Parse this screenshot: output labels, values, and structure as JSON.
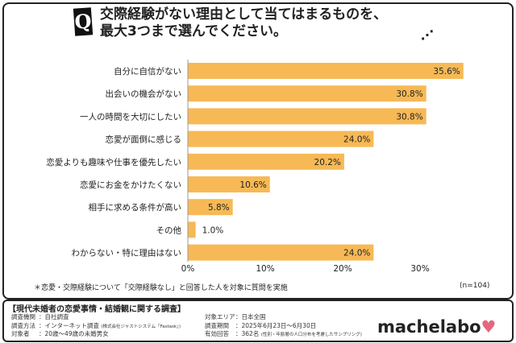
{
  "chart_data": {
    "type": "bar",
    "title": "交際経験がない理由として当てはまるものを、最大3つまで選んでください。",
    "title_lines": [
      "交際経験がない理由として当てはまるものを、",
      "最大3つまで選んでください。"
    ],
    "categories": [
      "自分に自信がない",
      "出会いの機会がない",
      "一人の時間を大切にしたい",
      "恋愛が面倒に感じる",
      "恋愛よりも趣味や仕事を優先したい",
      "恋愛にお金をかけたくない",
      "相手に求める条件が高い",
      "その他",
      "わからない・特に理由はない"
    ],
    "values": [
      35.6,
      30.8,
      30.8,
      24.0,
      20.2,
      10.6,
      5.8,
      1.0,
      24.0
    ],
    "value_labels": [
      "35.6%",
      "30.8%",
      "30.8%",
      "24.0%",
      "20.2%",
      "10.6%",
      "5.8%",
      "1.0%",
      "24.0%"
    ],
    "xticks": [
      "0%",
      "10%",
      "20%",
      "30%"
    ],
    "xlim": [
      0,
      36
    ],
    "orientation": "horizontal",
    "bar_color": "#f7b955",
    "grid": false
  },
  "q_label": "Q",
  "note": "＊恋愛・交際経験について「交際経験なし」と回答した人を対象に質問を実施",
  "n": "(n=104)",
  "footer": {
    "title": "【現代未婚者の恋愛事情・結婚観に関する調査】",
    "rows": [
      {
        "k": "調査機関",
        "v": "：自社調査",
        "sub": ""
      },
      {
        "k": "調査方法",
        "v": "：インターネット調査",
        "sub": "(株式会社ジャストシステム「Fastask」)"
      },
      {
        "k": "対象者",
        "v": "：20歳〜49歳の未婚男女",
        "sub": ""
      }
    ],
    "rows2": [
      {
        "k": "対象エリア",
        "v": "：日本全国",
        "sub": ""
      },
      {
        "k": "調査期間",
        "v": "：2025年6月23日〜6月30日",
        "sub": ""
      },
      {
        "k": "有効回答",
        "v": "：362名",
        "sub": "(性別・年齢層の人口分布を考慮したサンプリング)"
      }
    ],
    "logo": "machelabo"
  }
}
